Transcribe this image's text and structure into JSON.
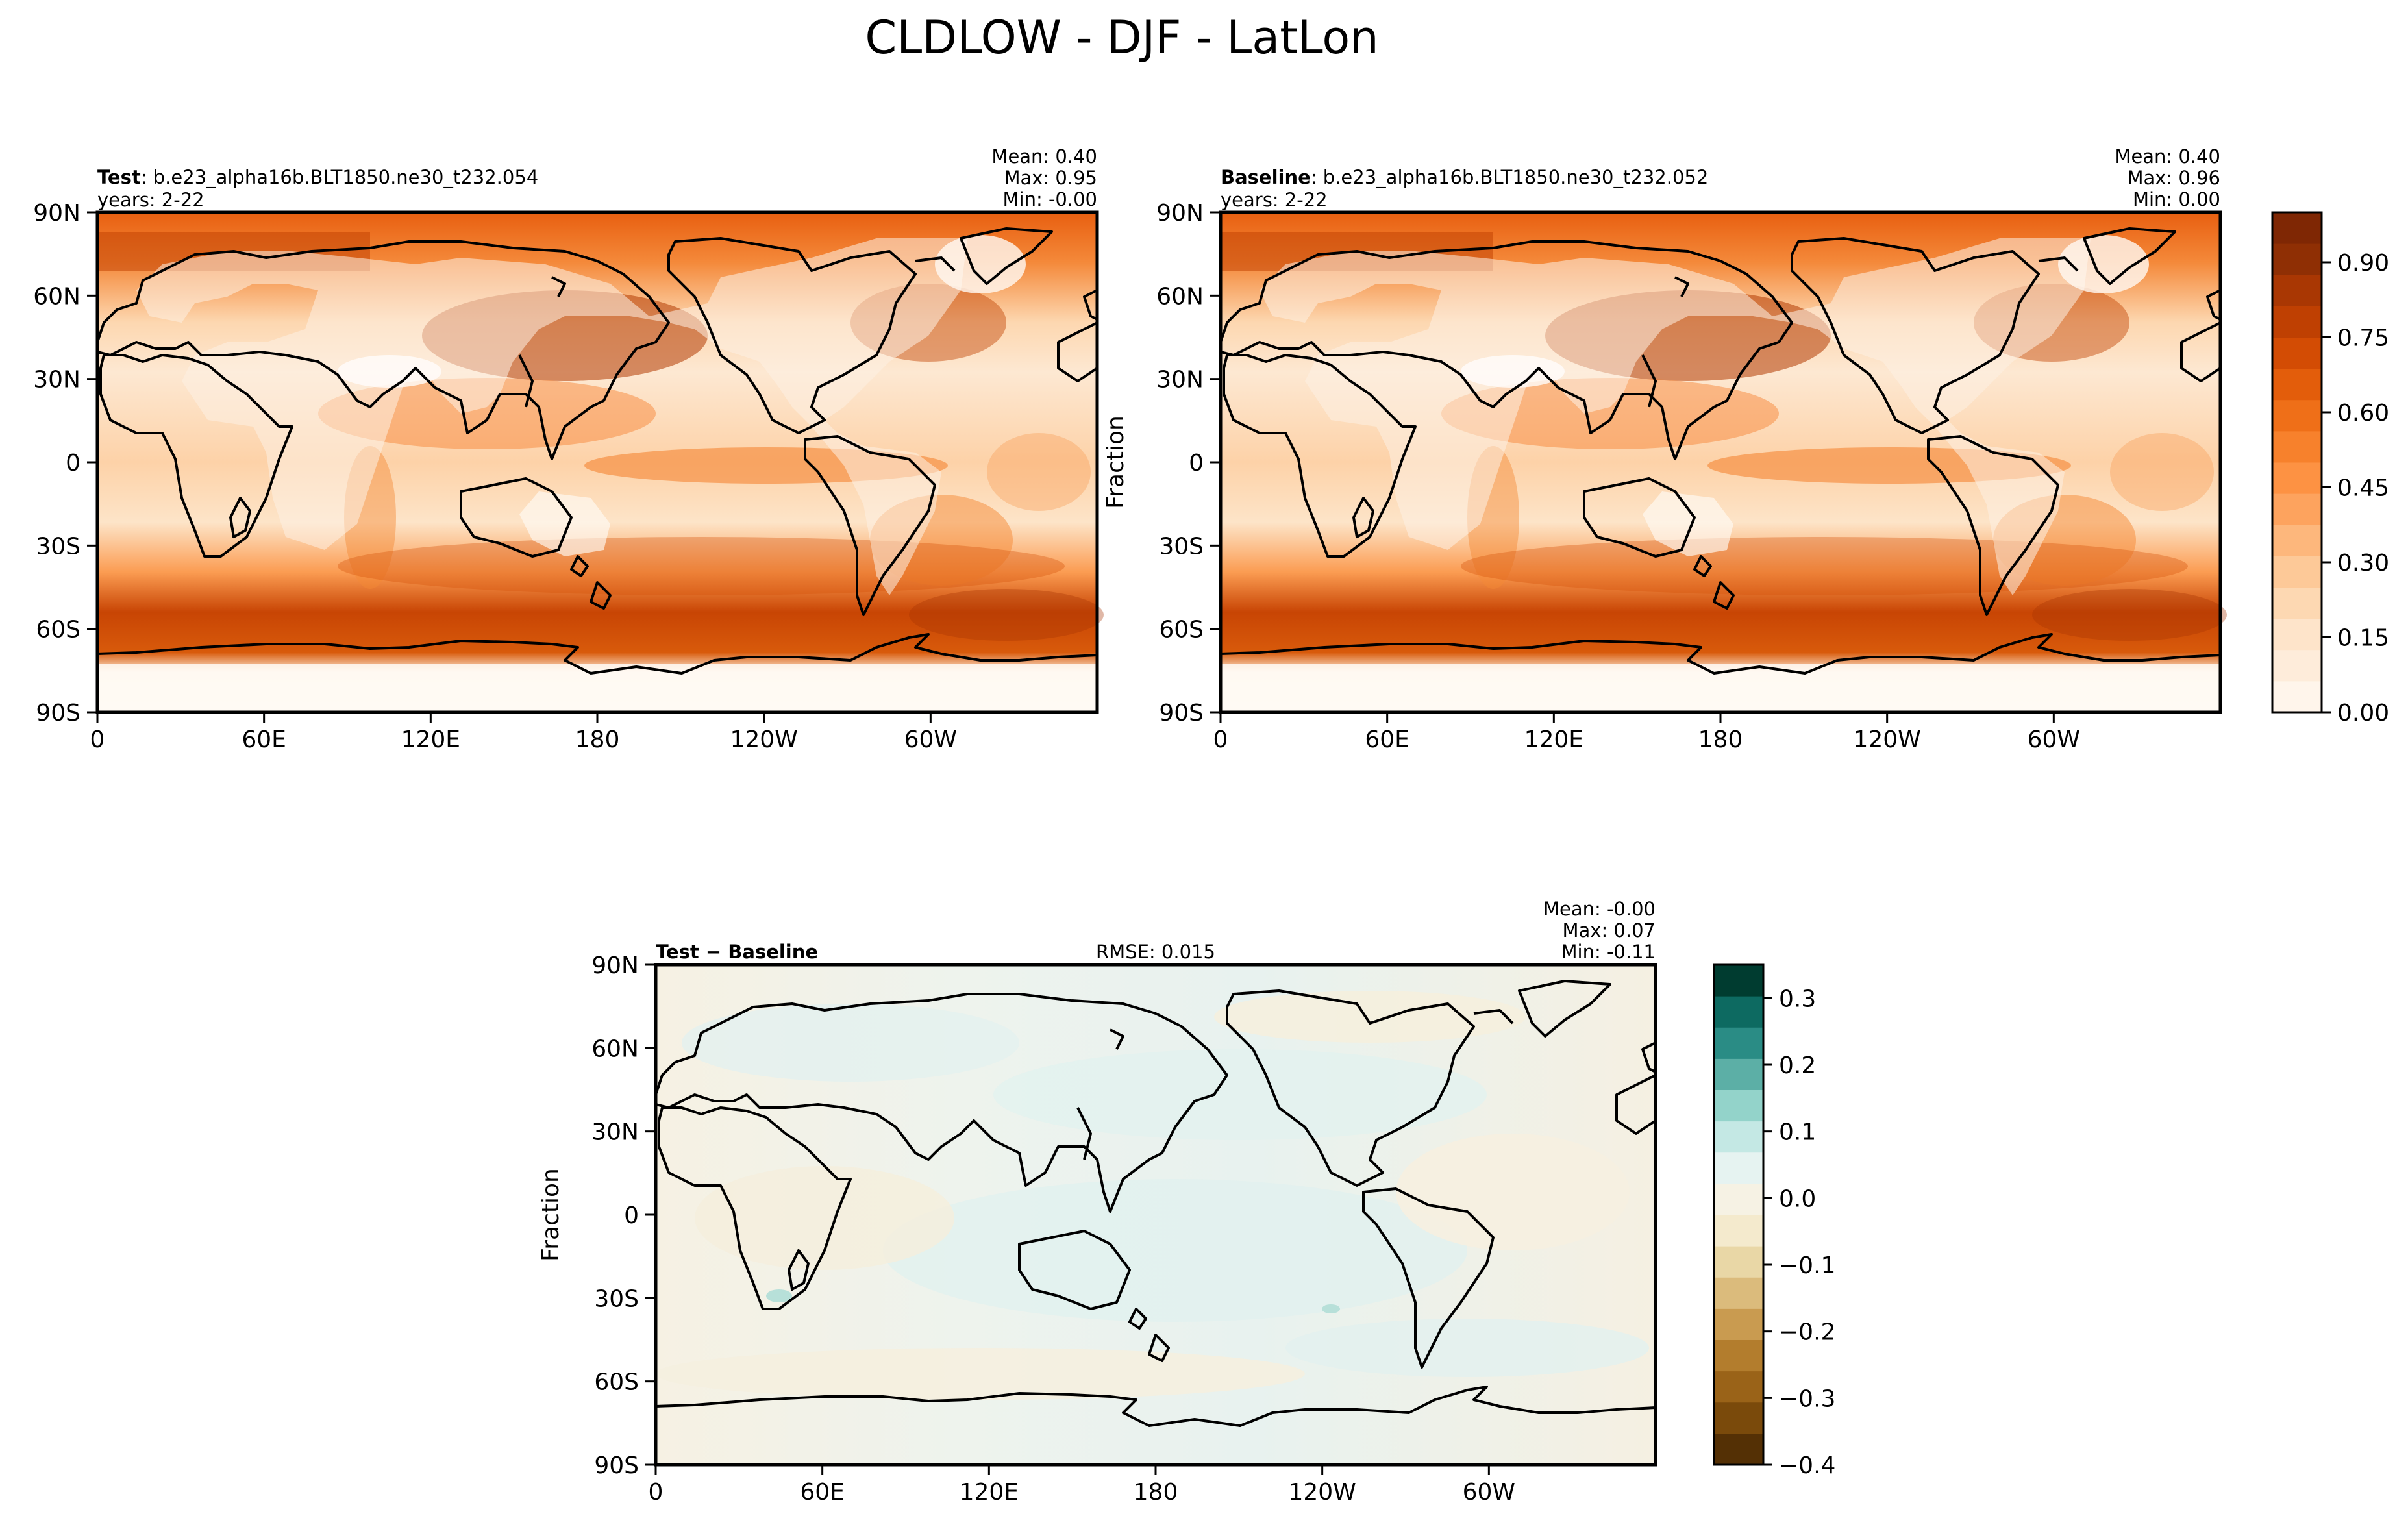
{
  "title": "CLDLOW - DJF - LatLon",
  "chart_data": [
    {
      "type": "heatmap",
      "panel": "test",
      "label_bold": "Test",
      "label_rest": ": b.e23_alpha16b.BLT1850.ne30_t232.054",
      "years": "years: 2-22",
      "stats": [
        "Mean:  0.40",
        "Max:  0.95",
        "Min: -0.00"
      ],
      "xticks": [
        "0",
        "60E",
        "120E",
        "180",
        "120W",
        "60W"
      ],
      "yticks": [
        "90N",
        "60N",
        "30N",
        "0",
        "30S",
        "60S",
        "90S"
      ],
      "ylabel": "",
      "xlim": [
        0,
        360
      ],
      "ylim": [
        -90,
        90
      ]
    },
    {
      "type": "heatmap",
      "panel": "baseline",
      "label_bold": "Baseline",
      "label_rest": ": b.e23_alpha16b.BLT1850.ne30_t232.052",
      "years": "years: 2-22",
      "stats": [
        "Mean:  0.40",
        "Max:  0.96",
        "Min:  0.00"
      ],
      "xticks": [
        "0",
        "60E",
        "120E",
        "180",
        "120W",
        "60W"
      ],
      "yticks": [
        "90N",
        "60N",
        "30N",
        "0",
        "30S",
        "60S",
        "90S"
      ],
      "ylabel": "Fraction",
      "xlim": [
        0,
        360
      ],
      "ylim": [
        -90,
        90
      ],
      "colorbar": {
        "range": [
          0.0,
          1.0
        ],
        "ticks": [
          "0.00",
          "0.15",
          "0.30",
          "0.45",
          "0.60",
          "0.75",
          "0.90"
        ],
        "tick_values": [
          0.0,
          0.15,
          0.3,
          0.45,
          0.6,
          0.75,
          0.9
        ],
        "colors": [
          "#fff5eb",
          "#feecda",
          "#fee4ca",
          "#fdd8b2",
          "#fdc998",
          "#fdb77c",
          "#fda35e",
          "#fd9243",
          "#f7812c",
          "#ef6f18",
          "#e35d0b",
          "#d34c04",
          "#bf4002",
          "#a93703",
          "#8f2f04",
          "#7f2704"
        ]
      }
    },
    {
      "type": "heatmap",
      "panel": "difference",
      "label_bold": "Test − Baseline",
      "rmse": "RMSE: 0.015",
      "stats": [
        "Mean: -0.00",
        "Max:  0.07",
        "Min: -0.11"
      ],
      "xticks": [
        "0",
        "60E",
        "120E",
        "180",
        "120W",
        "60W"
      ],
      "yticks": [
        "90N",
        "60N",
        "30N",
        "0",
        "30S",
        "60S",
        "90S"
      ],
      "ylabel": "Fraction",
      "xlim": [
        0,
        360
      ],
      "ylim": [
        -90,
        90
      ],
      "colorbar": {
        "range": [
          -0.4,
          0.35
        ],
        "ticks": [
          "0.3",
          "0.2",
          "0.1",
          "0.0",
          "−0.1",
          "−0.2",
          "−0.3",
          "−0.4"
        ],
        "tick_values": [
          0.3,
          0.2,
          0.1,
          0.0,
          -0.1,
          -0.2,
          -0.3,
          -0.4
        ],
        "colors": [
          "#543005",
          "#7a4a0b",
          "#9a6318",
          "#b37d2d",
          "#c99b50",
          "#dbbb7c",
          "#e9d7a6",
          "#f4eacd",
          "#f6f2e4",
          "#e6f3f1",
          "#c4e8e4",
          "#93d3ca",
          "#5cafa6",
          "#2a8c85",
          "#0d6a61",
          "#003c30"
        ]
      }
    }
  ]
}
